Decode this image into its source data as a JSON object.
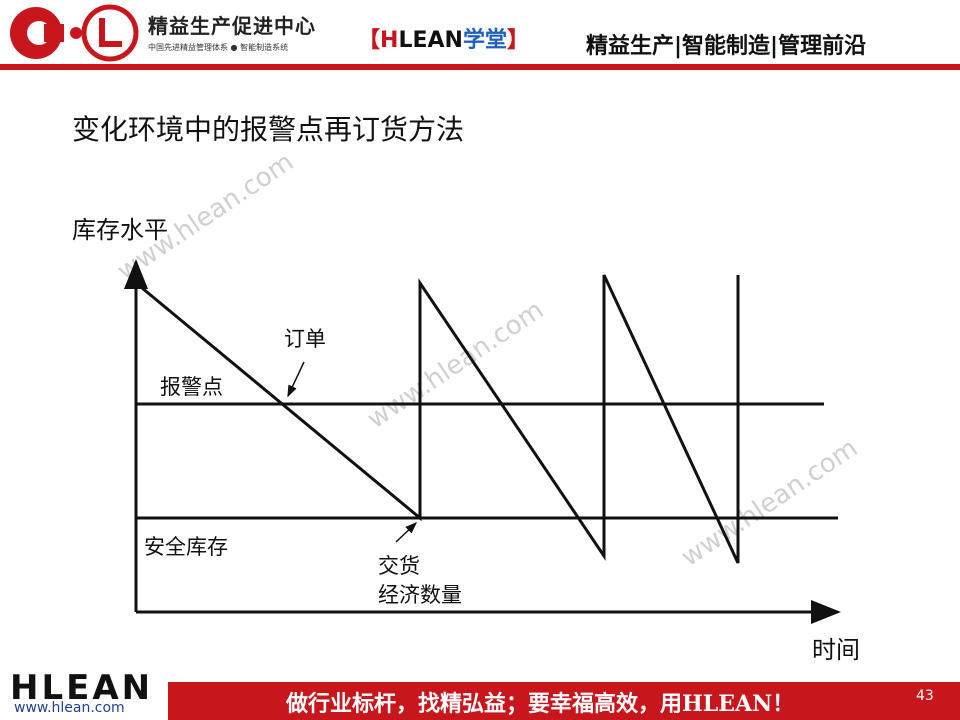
{
  "header": {
    "org_name": "精益生产促进中心",
    "org_subtitle": "中国先进精益管理体系 ● 智能制造系统",
    "brand_open": "【",
    "brand_h": "H",
    "brand_lean": "LEAN",
    "brand_school": "学堂",
    "brand_close": "】",
    "tagline": "精益生产|智能制造|管理前沿",
    "accent_color": "#c8161d"
  },
  "slide": {
    "title": "变化环境中的报警点再订货方法"
  },
  "diagram": {
    "y_axis_label": "库存水平",
    "x_axis_label": "时间",
    "reorder_point_label": "报警点",
    "safety_stock_label": "安全库存",
    "order_label": "订单",
    "delivery_label_line1": "交货",
    "delivery_label_line2": "经济数量"
  },
  "watermarks": [
    "www.hlean.com",
    "www.hlean.com",
    "www.hlean.com"
  ],
  "footer": {
    "logo": "HLEAN",
    "url": "www.hlean.com",
    "slogan": "做行业标杆，找精弘益；要幸福高效，用HLEAN！",
    "page_number": "43"
  }
}
